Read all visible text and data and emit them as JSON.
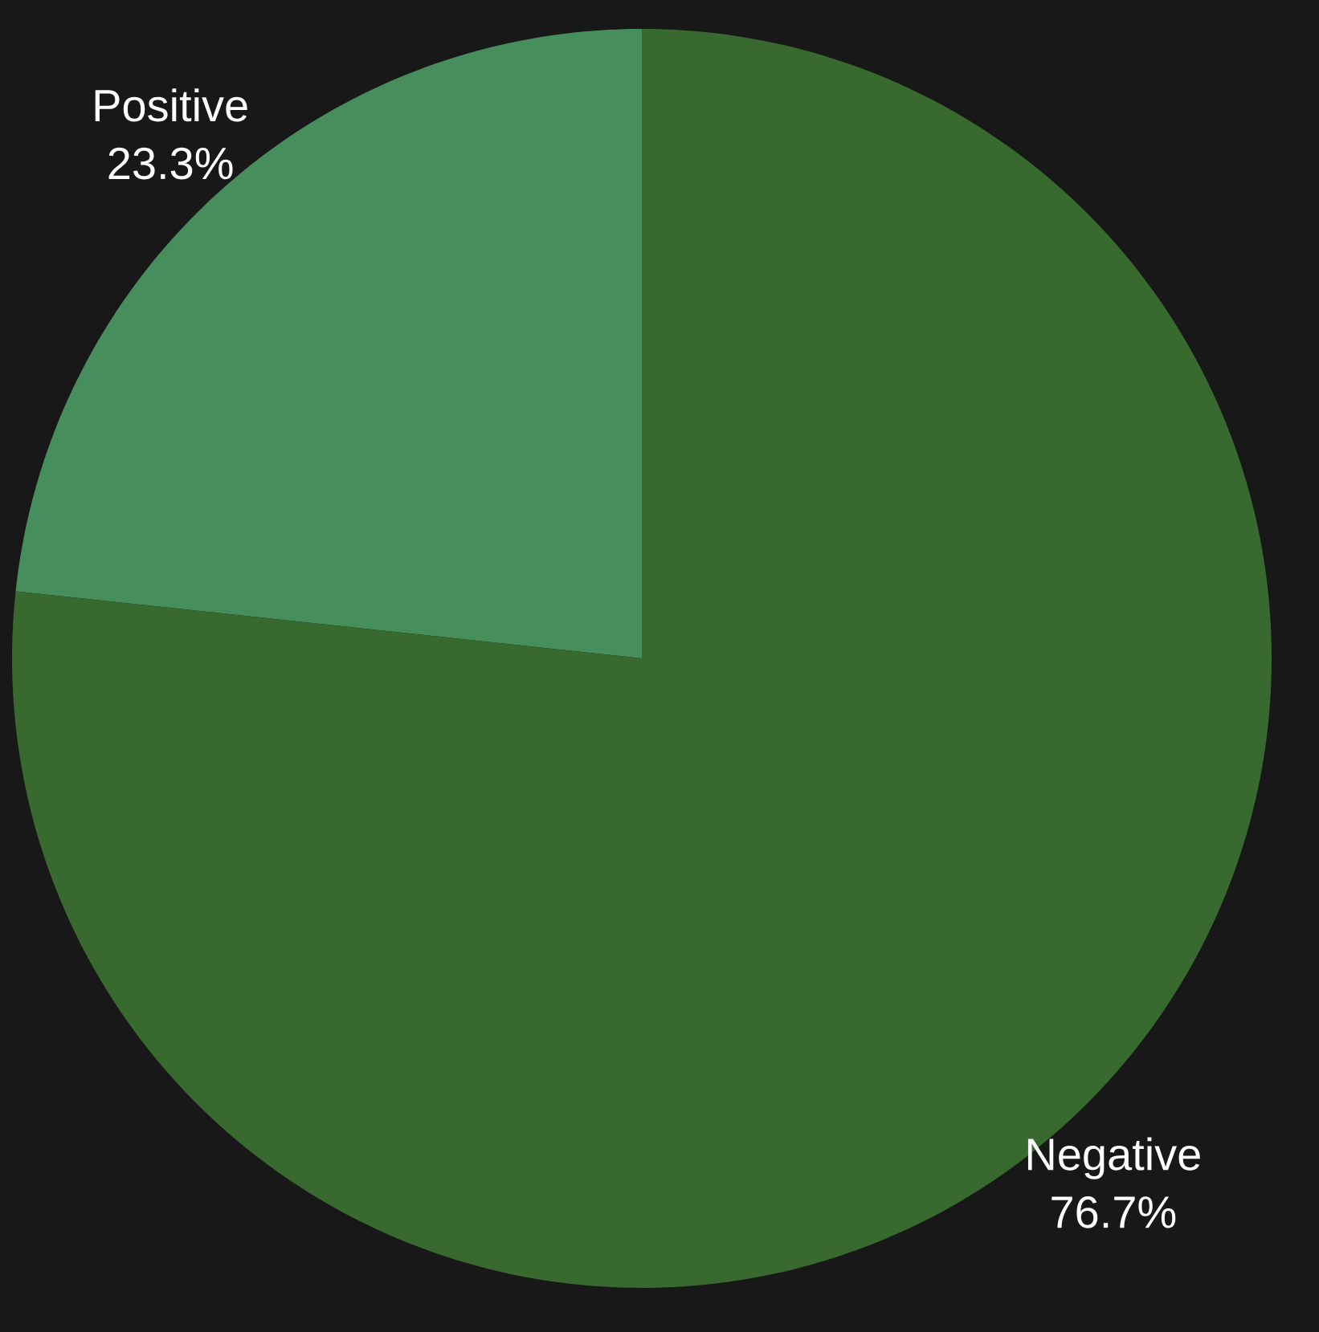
{
  "chart_data": {
    "type": "pie",
    "categories": [
      "Positive",
      "Negative"
    ],
    "values": [
      23.3,
      76.7
    ],
    "colors": [
      "#468f5d",
      "#38692e"
    ],
    "value_labels": [
      "23.3%",
      "76.7%"
    ]
  }
}
